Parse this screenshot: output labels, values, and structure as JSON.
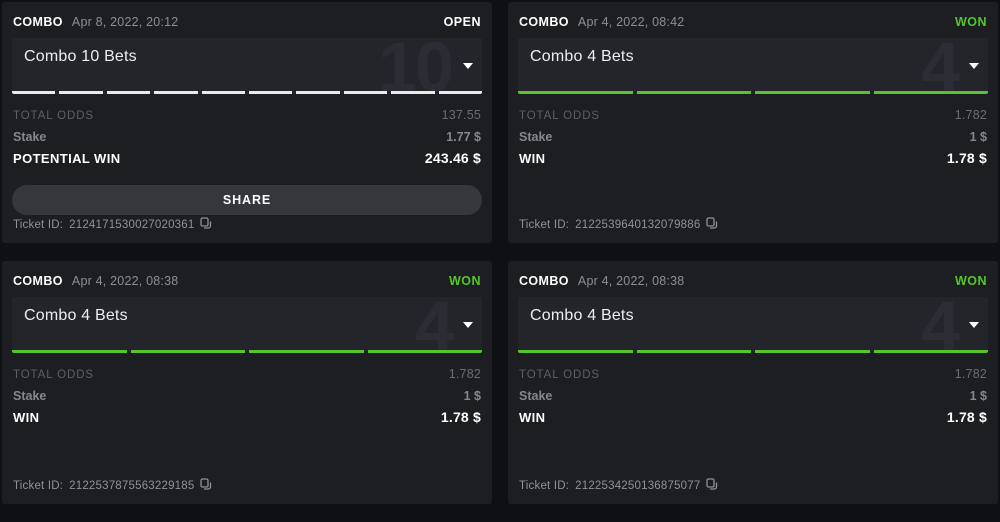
{
  "colors": {
    "won_green": "#54c62b",
    "open_white": "#ffffff",
    "segment_open": "#e9eaec",
    "segment_won": "#54c62b"
  },
  "cards": [
    {
      "type_label": "COMBO",
      "datetime": "Apr 8, 2022, 20:12",
      "status": "OPEN",
      "status_color": "#ffffff",
      "title": "Combo 10 Bets",
      "bet_count": "10",
      "segments": 10,
      "segment_color": "#e9eaec",
      "total_odds_label": "TOTAL ODDS",
      "total_odds": "137.55",
      "stake_label": "Stake",
      "stake": "1.77 $",
      "result_label": "POTENTIAL WIN",
      "result": "243.46 $",
      "share_label": "SHARE",
      "ticket_label": "Ticket ID:",
      "ticket_id": "2124171530027020361"
    },
    {
      "type_label": "COMBO",
      "datetime": "Apr 4, 2022, 08:42",
      "status": "WON",
      "status_color": "#54c62b",
      "title": "Combo 4 Bets",
      "bet_count": "4",
      "segments": 4,
      "segment_color": "#54c62b",
      "total_odds_label": "TOTAL ODDS",
      "total_odds": "1.782",
      "stake_label": "Stake",
      "stake": "1 $",
      "result_label": "WIN",
      "result": "1.78 $",
      "ticket_label": "Ticket ID:",
      "ticket_id": "2122539640132079886"
    },
    {
      "type_label": "COMBO",
      "datetime": "Apr 4, 2022, 08:38",
      "status": "WON",
      "status_color": "#54c62b",
      "title": "Combo 4 Bets",
      "bet_count": "4",
      "segments": 4,
      "segment_color": "#54c62b",
      "total_odds_label": "TOTAL ODDS",
      "total_odds": "1.782",
      "stake_label": "Stake",
      "stake": "1 $",
      "result_label": "WIN",
      "result": "1.78 $",
      "ticket_label": "Ticket ID:",
      "ticket_id": "2122537875563229185"
    },
    {
      "type_label": "COMBO",
      "datetime": "Apr 4, 2022, 08:38",
      "status": "WON",
      "status_color": "#54c62b",
      "title": "Combo 4 Bets",
      "bet_count": "4",
      "segments": 4,
      "segment_color": "#54c62b",
      "total_odds_label": "TOTAL ODDS",
      "total_odds": "1.782",
      "stake_label": "Stake",
      "stake": "1 $",
      "result_label": "WIN",
      "result": "1.78 $",
      "ticket_label": "Ticket ID:",
      "ticket_id": "2122534250136875077"
    }
  ]
}
